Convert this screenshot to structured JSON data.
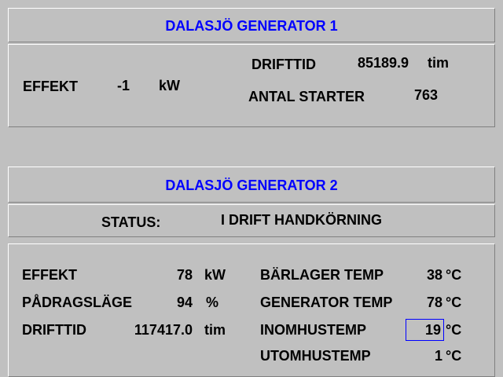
{
  "gen1": {
    "title": "DALASJÖ GENERATOR 1",
    "effekt_label": "EFFEKT",
    "effekt_value": "-1",
    "effekt_unit": "kW",
    "drifttid_label": "DRIFTTID",
    "drifttid_value": "85189.9",
    "drifttid_unit": "tim",
    "antal_starter_label": "ANTAL STARTER",
    "antal_starter_value": "763"
  },
  "gen2": {
    "title": "DALASJÖ GENERATOR 2",
    "status_label": "STATUS:",
    "status_value": "I DRIFT HANDKÖRNING",
    "effekt_label": "EFFEKT",
    "effekt_value": "78",
    "effekt_unit": "kW",
    "padragslage_label": "PÅDRAGSLÄGE",
    "padragslage_value": "94",
    "padragslage_unit": "%",
    "drifttid_label": "DRIFTTID",
    "drifttid_value": "117417.0",
    "drifttid_unit": "tim",
    "barlager_label": "BÄRLAGER TEMP",
    "barlager_value": "38",
    "barlager_unit": "°C",
    "generator_temp_label": "GENERATOR TEMP",
    "generator_temp_value": "78",
    "generator_temp_unit": "°C",
    "inomhus_label": "INOMHUSTEMP",
    "inomhus_value": "19",
    "inomhus_unit": "°C",
    "utomhus_label": "UTOMHUSTEMP",
    "utomhus_value": "1",
    "utomhus_unit": "°C"
  }
}
